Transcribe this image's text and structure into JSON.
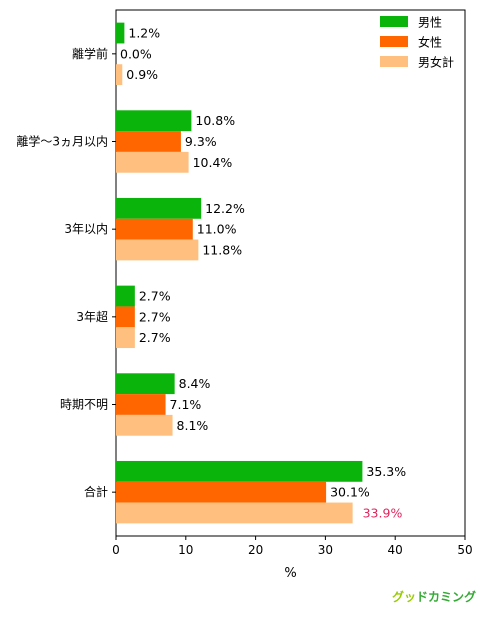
{
  "chart_data": {
    "type": "bar",
    "orientation": "horizontal",
    "categories": [
      "離学前",
      "離学〜3ヵ月以内",
      "3年以内",
      "3年超",
      "時期不明",
      "合計"
    ],
    "series": [
      {
        "name": "男性",
        "color": "#0bb40b",
        "values": [
          1.2,
          10.8,
          12.2,
          2.7,
          8.4,
          35.3
        ]
      },
      {
        "name": "女性",
        "color": "#ff6600",
        "values": [
          0.0,
          9.3,
          11.0,
          2.7,
          7.1,
          30.1
        ]
      },
      {
        "name": "男女計",
        "color": "#ffbf7f",
        "values": [
          0.9,
          10.4,
          11.8,
          2.7,
          8.1,
          33.9
        ]
      }
    ],
    "data_labels_suffix": "%",
    "highlight_label": {
      "category": "合計",
      "series": "男女計",
      "color": "#e0245e"
    },
    "xlabel": "%",
    "ylabel": "",
    "xlim": [
      0,
      50
    ],
    "xticks": [
      0,
      10,
      20,
      30,
      40,
      50
    ],
    "grid": false,
    "legend_position": "top-right"
  },
  "brand": {
    "text": "グッドカミング",
    "colors": [
      "#99cc00",
      "#33aa33"
    ]
  }
}
